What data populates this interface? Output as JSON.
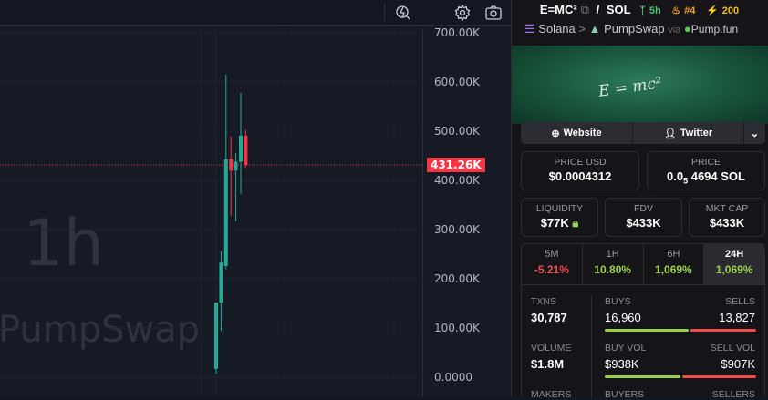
{
  "toolbar": {
    "icons": [
      "indicator-search-icon",
      "gear-icon",
      "camera-icon"
    ]
  },
  "chart": {
    "legend_fragment": ")",
    "watermark_interval": "1h",
    "watermark_source": "PumpSwap",
    "last_price_label": "431.26K",
    "colors": {
      "up": "#22ab94",
      "down": "#f23645"
    }
  },
  "chart_data": {
    "type": "candlestick",
    "interval": "1h",
    "ylim": [
      0,
      700000
    ],
    "y_ticks": [
      "700.00K",
      "600.00K",
      "500.00K",
      "400.00K",
      "300.00K",
      "200.00K",
      "100.00K",
      "0.0000"
    ],
    "y_tick_values": [
      700000,
      600000,
      500000,
      400000,
      300000,
      200000,
      100000,
      0
    ],
    "last_price": 431260,
    "candles": [
      {
        "o": 17000,
        "h": 152000,
        "l": 7000,
        "c": 152000
      },
      {
        "o": 152000,
        "h": 257000,
        "l": 94000,
        "c": 233000
      },
      {
        "o": 226000,
        "h": 615000,
        "l": 220000,
        "c": 443000
      },
      {
        "o": 443000,
        "h": 489000,
        "l": 328000,
        "c": 420000
      },
      {
        "o": 420000,
        "h": 456000,
        "l": 317000,
        "c": 438000
      },
      {
        "o": 438000,
        "h": 578000,
        "l": 372000,
        "c": 491000
      },
      {
        "o": 491000,
        "h": 502000,
        "l": 425000,
        "c": 431260
      }
    ]
  },
  "panel": {
    "token": "E=MC²",
    "quote": "SOL",
    "separator": "/",
    "age": "5h",
    "rank": "#4",
    "boosts": "200",
    "chain": "Solana",
    "dex": "PumpSwap",
    "via": "via",
    "launchpad": "Pump.fun",
    "banner_text": "E = mc²",
    "links": {
      "website": "Website",
      "twitter": "Twitter"
    },
    "price_usd": {
      "label": "PRICE USD",
      "value": "$0.0004312"
    },
    "price_native": {
      "label": "PRICE",
      "prefix": "0.0",
      "sub": "5",
      "value": "4694 SOL"
    },
    "liquidity": {
      "label": "LIQUIDITY",
      "value": "$77K"
    },
    "fdv": {
      "label": "FDV",
      "value": "$433K"
    },
    "mktcap": {
      "label": "MKT CAP",
      "value": "$433K"
    },
    "tabs": [
      {
        "label": "5M",
        "value": "-5.21%",
        "color": "red"
      },
      {
        "label": "1H",
        "value": "10.80%",
        "color": "green"
      },
      {
        "label": "6H",
        "value": "1,069%",
        "color": "green"
      },
      {
        "label": "24H",
        "value": "1,069%",
        "color": "green",
        "active": true
      }
    ],
    "stats": {
      "txns": {
        "label": "TXNS",
        "value": "30,787"
      },
      "buys": {
        "label": "BUYS",
        "value": "16,960"
      },
      "sells": {
        "label": "SELLS",
        "value": "13,827"
      },
      "volume": {
        "label": "VOLUME",
        "value": "$1.8M"
      },
      "buy_vol": {
        "label": "BUY VOL",
        "value": "$938K"
      },
      "sell_vol": {
        "label": "SELL VOL",
        "value": "$907K"
      },
      "makers": {
        "label": "MAKERS"
      },
      "buyers": {
        "label": "BUYERS"
      },
      "sellers": {
        "label": "SELLERS"
      }
    }
  }
}
